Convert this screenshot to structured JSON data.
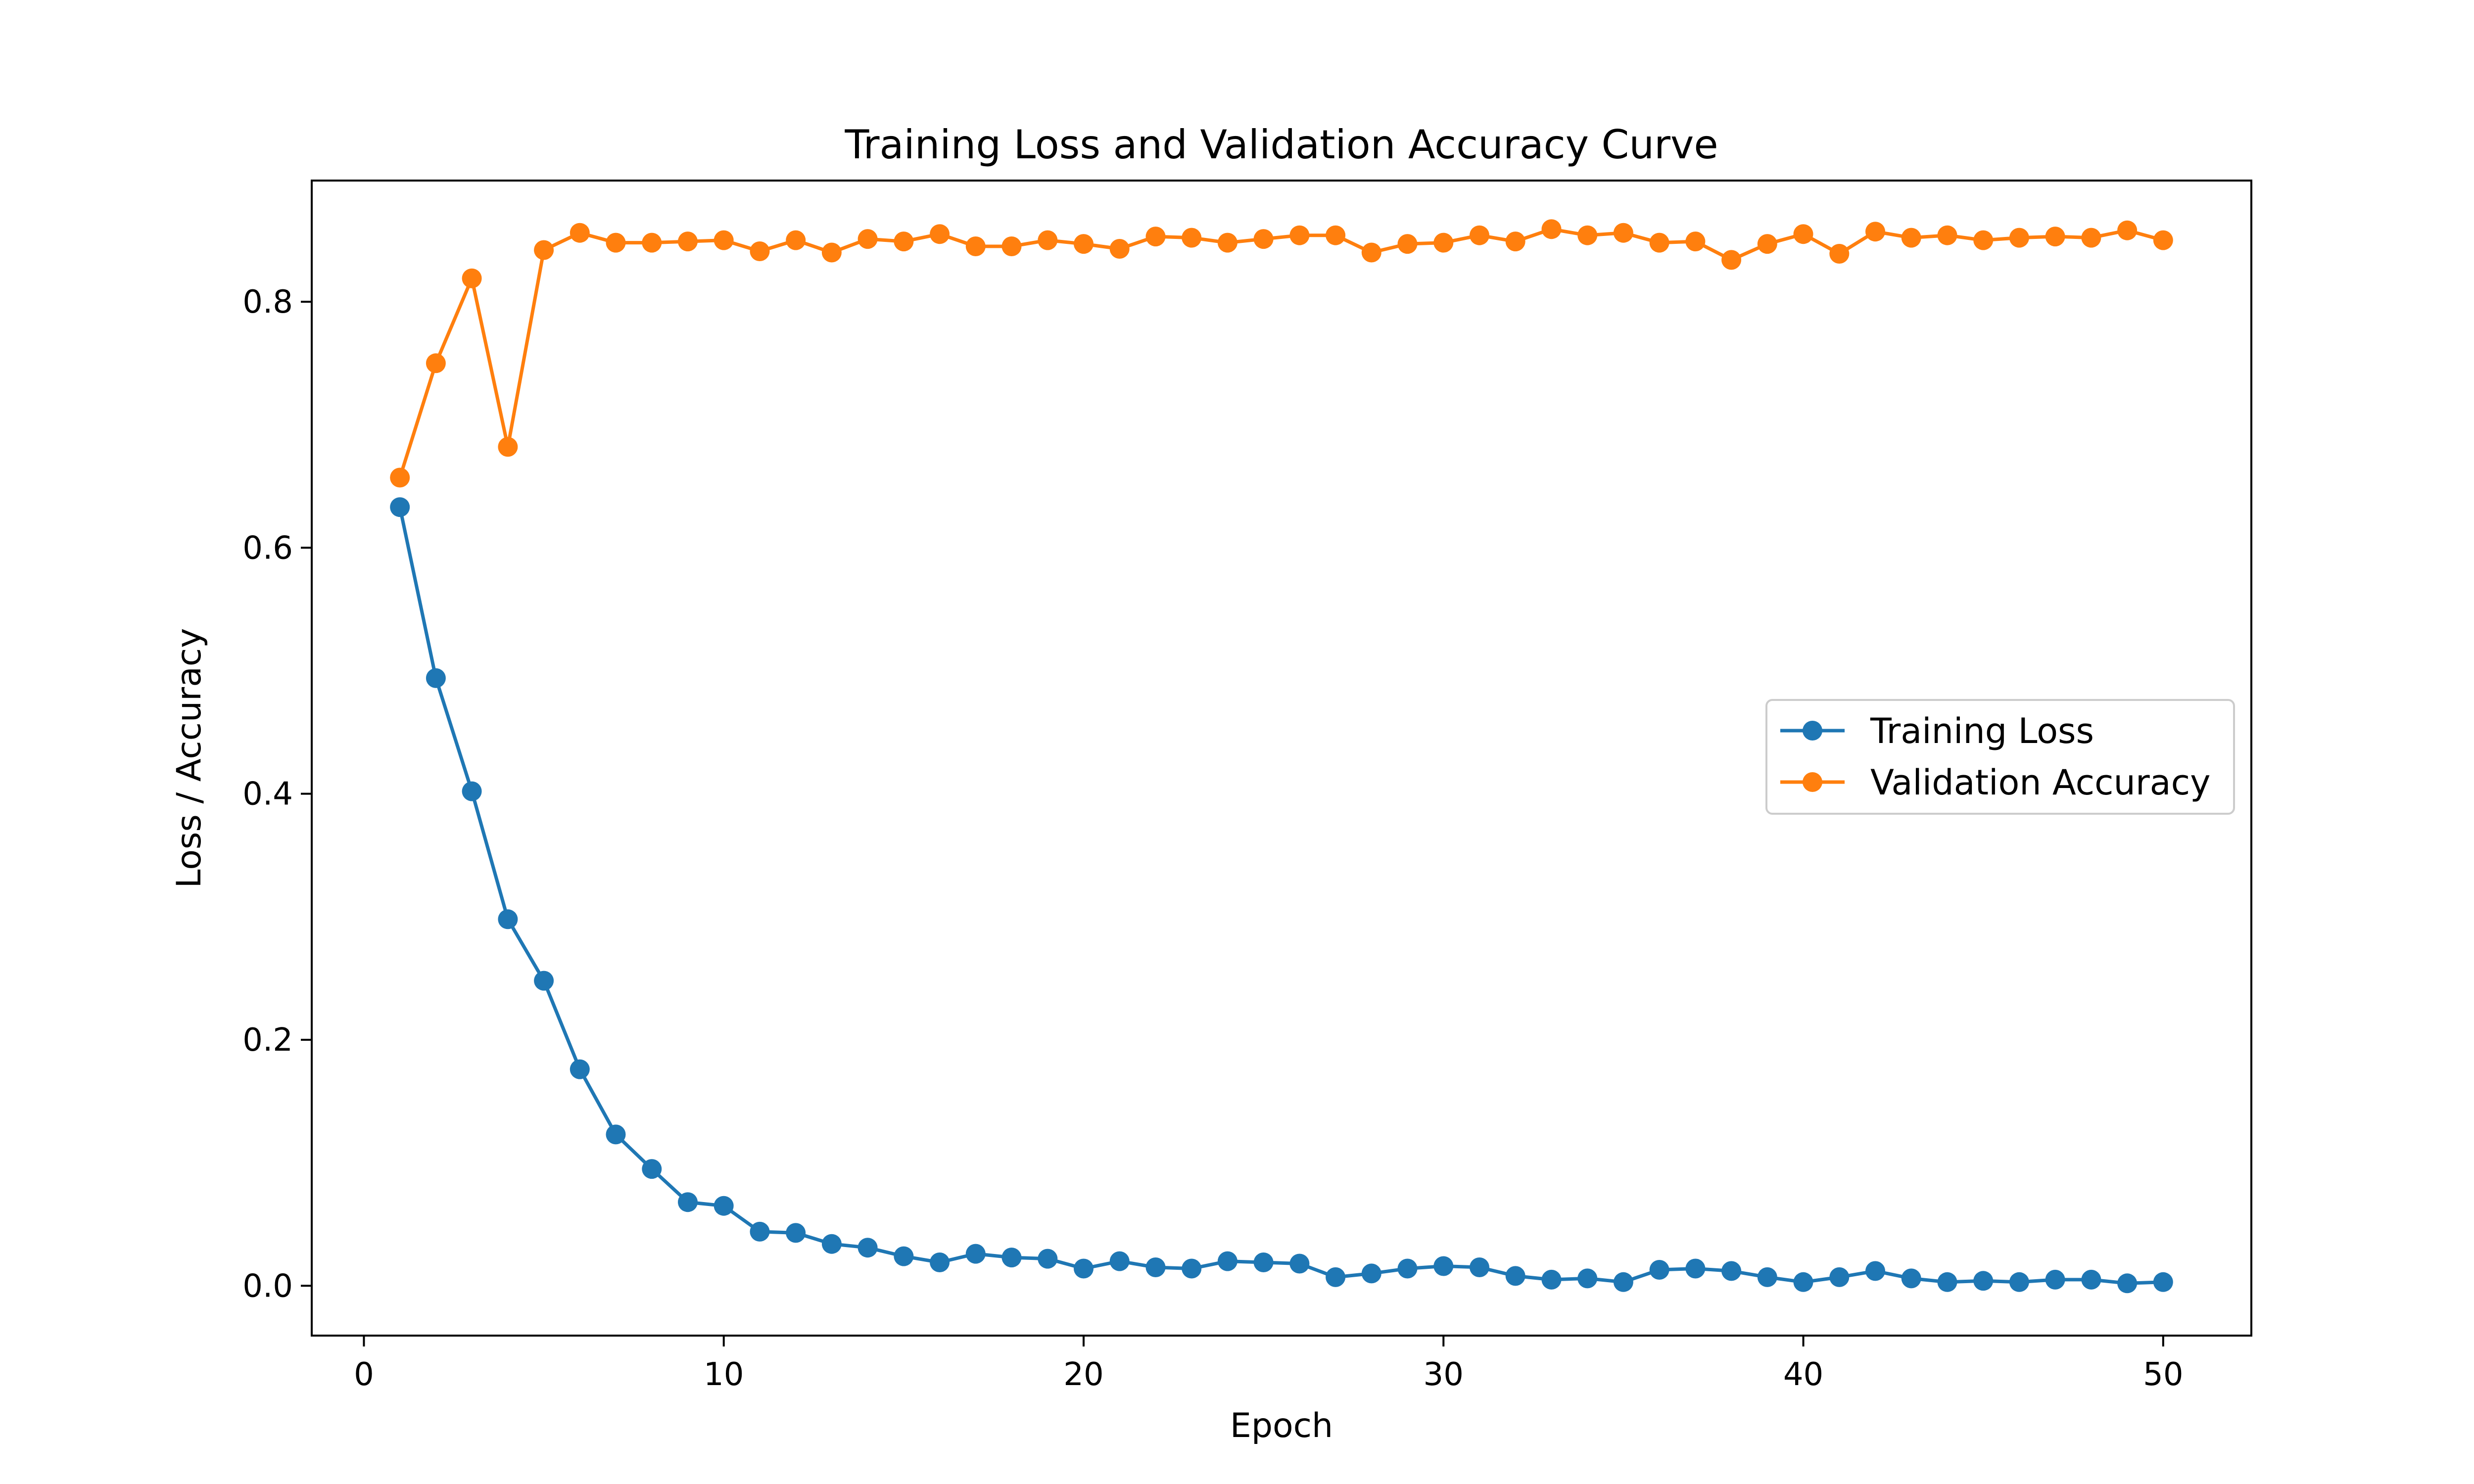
{
  "chart_data": {
    "type": "line",
    "title": "Training Loss and Validation Accuracy Curve",
    "xlabel": "Epoch",
    "ylabel": "Loss / Accuracy",
    "xlim": [
      -1.45,
      52.45
    ],
    "ylim": [
      -0.0405,
      0.8985
    ],
    "xticks": [
      0,
      10,
      20,
      30,
      40,
      50
    ],
    "yticks": [
      0.0,
      0.2,
      0.4,
      0.6,
      0.8
    ],
    "xtick_labels": [
      "0",
      "10",
      "20",
      "30",
      "40",
      "50"
    ],
    "ytick_labels": [
      "0.0",
      "0.2",
      "0.4",
      "0.6",
      "0.8"
    ],
    "grid": false,
    "legend_position": "center-right",
    "x": [
      1,
      2,
      3,
      4,
      5,
      6,
      7,
      8,
      9,
      10,
      11,
      12,
      13,
      14,
      15,
      16,
      17,
      18,
      19,
      20,
      21,
      22,
      23,
      24,
      25,
      26,
      27,
      28,
      29,
      30,
      31,
      32,
      33,
      34,
      35,
      36,
      37,
      38,
      39,
      40,
      41,
      42,
      43,
      44,
      45,
      46,
      47,
      48,
      49,
      50
    ],
    "series": [
      {
        "name": "Training Loss",
        "color": "#1f77b4",
        "values": [
          0.633,
          0.494,
          0.402,
          0.298,
          0.248,
          0.176,
          0.123,
          0.095,
          0.068,
          0.065,
          0.044,
          0.043,
          0.034,
          0.031,
          0.024,
          0.019,
          0.026,
          0.023,
          0.022,
          0.014,
          0.02,
          0.015,
          0.014,
          0.02,
          0.019,
          0.018,
          0.007,
          0.01,
          0.014,
          0.016,
          0.015,
          0.008,
          0.005,
          0.006,
          0.003,
          0.013,
          0.014,
          0.012,
          0.007,
          0.003,
          0.007,
          0.012,
          0.006,
          0.003,
          0.004,
          0.003,
          0.005,
          0.005,
          0.002,
          0.003
        ]
      },
      {
        "name": "Validation Accuracy",
        "color": "#ff7f0e",
        "values": [
          0.657,
          0.75,
          0.819,
          0.682,
          0.842,
          0.856,
          0.848,
          0.848,
          0.849,
          0.85,
          0.841,
          0.85,
          0.84,
          0.851,
          0.849,
          0.855,
          0.845,
          0.845,
          0.85,
          0.847,
          0.843,
          0.853,
          0.852,
          0.848,
          0.851,
          0.854,
          0.854,
          0.84,
          0.847,
          0.848,
          0.854,
          0.849,
          0.859,
          0.854,
          0.856,
          0.848,
          0.849,
          0.834,
          0.847,
          0.855,
          0.839,
          0.857,
          0.852,
          0.854,
          0.85,
          0.852,
          0.853,
          0.852,
          0.858,
          0.85
        ]
      }
    ]
  }
}
